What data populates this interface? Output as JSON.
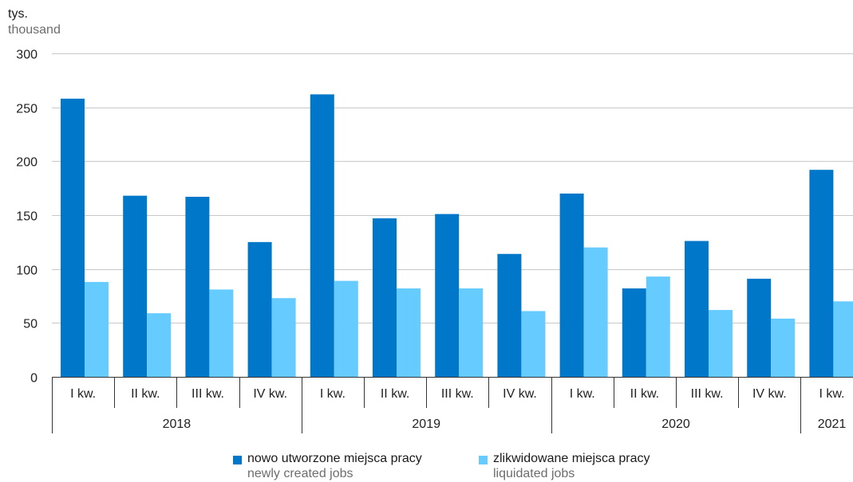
{
  "unit_label": "tys.",
  "unit_label_en": "thousand",
  "colors": {
    "newly_created": "#0077c8",
    "liquidated": "#66ccff",
    "grid": "#c8c8c8",
    "axis": "#333333"
  },
  "legend": [
    {
      "label": "nowo utworzone miejsca pracy",
      "label_en": "newly created jobs",
      "color": "#0077c8"
    },
    {
      "label": "zlikwidowane miejsca pracy",
      "label_en": "liquidated jobs",
      "color": "#66ccff"
    }
  ],
  "chart_data": {
    "type": "bar",
    "categories": [
      "I kw.",
      "II kw.",
      "III kw.",
      "IV kw.",
      "I kw.",
      "II kw.",
      "III kw.",
      "IV kw.",
      "I kw.",
      "II kw.",
      "III kw.",
      "IV kw.",
      "I kw."
    ],
    "years": [
      {
        "label": "2018",
        "quarters": 4
      },
      {
        "label": "2019",
        "quarters": 4
      },
      {
        "label": "2020",
        "quarters": 4
      },
      {
        "label": "2021",
        "quarters": 1
      }
    ],
    "series": [
      {
        "name": "nowo utworzone miejsca pracy",
        "values": [
          258,
          168,
          167,
          125,
          262,
          147,
          151,
          114,
          170,
          82,
          126,
          91,
          192
        ]
      },
      {
        "name": "zlikwidowane miejsca pracy",
        "values": [
          88,
          59,
          81,
          73,
          89,
          82,
          82,
          61,
          120,
          93,
          62,
          54,
          70
        ]
      }
    ],
    "ylim": [
      0,
      300
    ],
    "yticks": [
      0,
      50,
      100,
      150,
      200,
      250,
      300
    ],
    "grid": true
  }
}
